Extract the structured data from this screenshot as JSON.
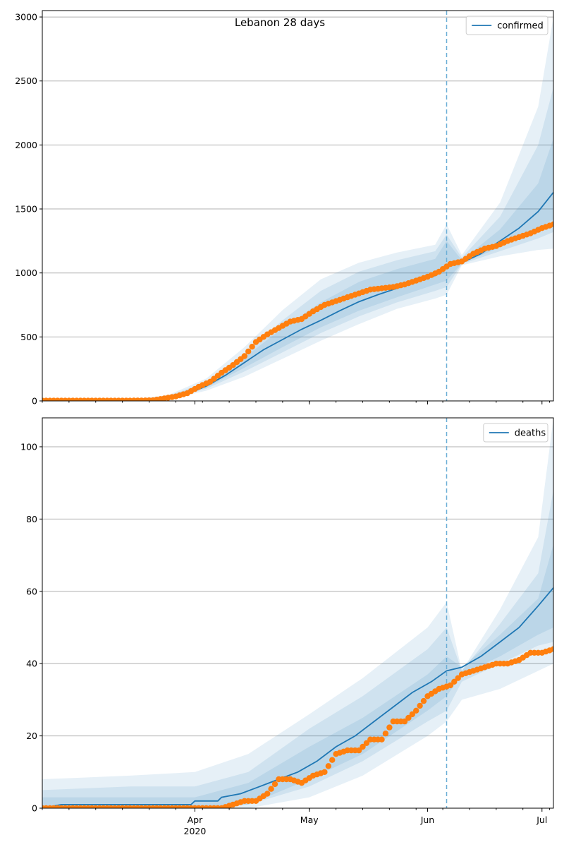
{
  "figure": {
    "title": "Lebanon 28 days"
  },
  "colors": {
    "model_line": "#1f77b4",
    "observed_points": "#ff7f0e",
    "band": "#1f77b4",
    "forecast_start_line": "#6baed6",
    "grid": "#b0b0b0"
  },
  "chart_data": [
    {
      "type": "line",
      "panel": "top",
      "title": "Lebanon 28 days",
      "legend": {
        "label": "confirmed",
        "placement": "top-right"
      },
      "x_axis": {
        "type": "date",
        "range": [
          "2020-02-21",
          "2020-07-04"
        ],
        "ticks": [
          {
            "date": "2020-04-01",
            "label": "Apr",
            "sublabel": "2020"
          },
          {
            "date": "2020-05-01",
            "label": "May",
            "sublabel": ""
          },
          {
            "date": "2020-06-01",
            "label": "Jun",
            "sublabel": ""
          },
          {
            "date": "2020-07-01",
            "label": "Jul",
            "sublabel": ""
          }
        ],
        "show_tick_labels": false
      },
      "y_axis": {
        "range": [
          0,
          3050
        ],
        "ticks": [
          0,
          500,
          1000,
          1500,
          2000,
          2500,
          3000
        ]
      },
      "grid": "horizontal",
      "forecast_start": "2020-06-06",
      "model": {
        "x": [
          "2020-02-21",
          "2020-03-05",
          "2020-03-15",
          "2020-03-20",
          "2020-03-25",
          "2020-03-30",
          "2020-04-04",
          "2020-04-09",
          "2020-04-14",
          "2020-04-19",
          "2020-04-24",
          "2020-04-29",
          "2020-05-04",
          "2020-05-09",
          "2020-05-14",
          "2020-05-19",
          "2020-05-24",
          "2020-05-29",
          "2020-06-03",
          "2020-06-06",
          "2020-06-10",
          "2020-06-15",
          "2020-06-20",
          "2020-06-25",
          "2020-06-30",
          "2020-07-04"
        ],
        "y": [
          0,
          0,
          3,
          10,
          25,
          55,
          115,
          200,
          300,
          400,
          480,
          560,
          630,
          705,
          775,
          830,
          880,
          930,
          980,
          1050,
          1080,
          1150,
          1250,
          1350,
          1480,
          1630
        ]
      },
      "bands": [
        {
          "x": [
            "2020-02-21",
            "2020-03-15",
            "2020-03-25",
            "2020-04-04",
            "2020-04-14",
            "2020-04-24",
            "2020-05-04",
            "2020-05-14",
            "2020-05-24",
            "2020-06-03",
            "2020-06-06",
            "2020-06-10",
            "2020-06-20",
            "2020-06-30",
            "2020-07-04"
          ],
          "lower": [
            0,
            0,
            10,
            80,
            190,
            330,
            470,
            600,
            720,
            800,
            830,
            1060,
            1130,
            1180,
            1190
          ],
          "upper": [
            0,
            10,
            45,
            175,
            420,
            710,
            950,
            1080,
            1160,
            1220,
            1380,
            1140,
            1550,
            2300,
            3000
          ]
        },
        {
          "x": [
            "2020-02-21",
            "2020-03-15",
            "2020-03-25",
            "2020-04-04",
            "2020-04-14",
            "2020-04-24",
            "2020-05-04",
            "2020-05-14",
            "2020-05-24",
            "2020-06-03",
            "2020-06-06",
            "2020-06-10",
            "2020-06-20",
            "2020-06-30",
            "2020-07-04"
          ],
          "lower": [
            0,
            0,
            15,
            95,
            230,
            380,
            530,
            660,
            770,
            860,
            890,
            1070,
            1170,
            1270,
            1320
          ],
          "upper": [
            0,
            7,
            38,
            150,
            370,
            630,
            860,
            1010,
            1100,
            1170,
            1300,
            1120,
            1440,
            2000,
            2450
          ]
        },
        {
          "x": [
            "2020-02-21",
            "2020-03-15",
            "2020-03-25",
            "2020-04-04",
            "2020-04-14",
            "2020-04-24",
            "2020-05-04",
            "2020-05-14",
            "2020-05-24",
            "2020-06-03",
            "2020-06-06",
            "2020-06-10",
            "2020-06-20",
            "2020-06-30",
            "2020-07-04"
          ],
          "lower": [
            0,
            1,
            18,
            105,
            260,
            420,
            575,
            705,
            810,
            910,
            940,
            1075,
            1200,
            1340,
            1420
          ],
          "upper": [
            0,
            5,
            32,
            130,
            340,
            570,
            770,
            930,
            1030,
            1110,
            1250,
            1100,
            1340,
            1700,
            2050
          ]
        }
      ],
      "observed": {
        "x": [
          "2020-02-21",
          "2020-02-26",
          "2020-03-03",
          "2020-03-08",
          "2020-03-13",
          "2020-03-18",
          "2020-03-21",
          "2020-03-24",
          "2020-03-27",
          "2020-03-30",
          "2020-04-02",
          "2020-04-05",
          "2020-04-08",
          "2020-04-11",
          "2020-04-14",
          "2020-04-17",
          "2020-04-20",
          "2020-04-23",
          "2020-04-26",
          "2020-04-29",
          "2020-05-02",
          "2020-05-05",
          "2020-05-08",
          "2020-05-11",
          "2020-05-14",
          "2020-05-17",
          "2020-05-20",
          "2020-05-23",
          "2020-05-26",
          "2020-05-29",
          "2020-06-01",
          "2020-06-04",
          "2020-06-07",
          "2020-06-10",
          "2020-06-13",
          "2020-06-16",
          "2020-06-19",
          "2020-06-22",
          "2020-06-25",
          "2020-06-28",
          "2020-07-01",
          "2020-07-04"
        ],
        "y": [
          2,
          2,
          2,
          2,
          2,
          3,
          5,
          20,
          35,
          60,
          110,
          150,
          220,
          280,
          350,
          460,
          520,
          570,
          620,
          640,
          700,
          750,
          780,
          810,
          840,
          870,
          880,
          890,
          910,
          940,
          970,
          1010,
          1070,
          1090,
          1150,
          1190,
          1210,
          1250,
          1280,
          1310,
          1350,
          1380
        ]
      }
    },
    {
      "type": "line",
      "panel": "bottom",
      "legend": {
        "label": "deaths",
        "placement": "top-right"
      },
      "x_axis": {
        "type": "date",
        "range": [
          "2020-02-21",
          "2020-07-04"
        ],
        "ticks": [
          {
            "date": "2020-04-01",
            "label": "Apr",
            "sublabel": "2020"
          },
          {
            "date": "2020-05-01",
            "label": "May",
            "sublabel": ""
          },
          {
            "date": "2020-06-01",
            "label": "Jun",
            "sublabel": ""
          },
          {
            "date": "2020-07-01",
            "label": "Jul",
            "sublabel": ""
          }
        ],
        "show_tick_labels": true
      },
      "y_axis": {
        "range": [
          0,
          108
        ],
        "ticks": [
          0,
          20,
          40,
          60,
          80,
          100
        ]
      },
      "grid": "horizontal",
      "forecast_start": "2020-06-06",
      "model": {
        "x": [
          "2020-02-21",
          "2020-02-26",
          "2020-03-31",
          "2020-04-01",
          "2020-04-07",
          "2020-04-08",
          "2020-04-13",
          "2020-04-18",
          "2020-04-23",
          "2020-04-28",
          "2020-05-03",
          "2020-05-08",
          "2020-05-13",
          "2020-05-18",
          "2020-05-23",
          "2020-05-28",
          "2020-06-02",
          "2020-06-06",
          "2020-06-10",
          "2020-06-15",
          "2020-06-20",
          "2020-06-25",
          "2020-06-30",
          "2020-07-04"
        ],
        "y": [
          0,
          1,
          1,
          2,
          2,
          3,
          4,
          6,
          8,
          10,
          13,
          17,
          20,
          24,
          28,
          32,
          35,
          38,
          39,
          42,
          46,
          50,
          56,
          61
        ]
      },
      "bands": [
        {
          "x": [
            "2020-02-21",
            "2020-03-15",
            "2020-04-01",
            "2020-04-15",
            "2020-05-01",
            "2020-05-15",
            "2020-06-01",
            "2020-06-06",
            "2020-06-10",
            "2020-06-20",
            "2020-06-30",
            "2020-07-04"
          ],
          "lower": [
            0,
            0,
            0,
            0,
            3,
            9,
            20,
            24,
            30,
            33,
            38,
            40
          ],
          "upper": [
            8,
            9,
            10,
            15,
            26,
            36,
            50,
            57,
            38,
            55,
            75,
            108
          ]
        },
        {
          "x": [
            "2020-02-21",
            "2020-03-15",
            "2020-04-01",
            "2020-04-15",
            "2020-05-01",
            "2020-05-15",
            "2020-06-01",
            "2020-06-06",
            "2020-06-10",
            "2020-06-20",
            "2020-06-30",
            "2020-07-04"
          ],
          "lower": [
            0,
            0,
            0,
            1,
            6,
            13,
            24,
            27,
            35,
            40,
            45,
            46
          ],
          "upper": [
            5,
            6,
            6,
            10,
            22,
            31,
            44,
            50,
            38,
            51,
            65,
            88
          ]
        },
        {
          "x": [
            "2020-02-21",
            "2020-03-15",
            "2020-04-01",
            "2020-04-15",
            "2020-05-01",
            "2020-05-15",
            "2020-06-01",
            "2020-06-06",
            "2020-06-10",
            "2020-06-20",
            "2020-06-30",
            "2020-07-04"
          ],
          "lower": [
            0,
            0,
            0,
            1,
            8,
            15,
            27,
            31,
            37,
            42,
            48,
            50
          ],
          "upper": [
            3,
            3,
            3,
            7,
            17,
            25,
            37,
            42,
            39,
            48,
            58,
            73
          ]
        }
      ],
      "observed": {
        "x": [
          "2020-02-21",
          "2020-03-01",
          "2020-03-10",
          "2020-03-20",
          "2020-03-31",
          "2020-04-08",
          "2020-04-11",
          "2020-04-14",
          "2020-04-17",
          "2020-04-20",
          "2020-04-23",
          "2020-04-26",
          "2020-04-29",
          "2020-05-02",
          "2020-05-05",
          "2020-05-08",
          "2020-05-11",
          "2020-05-14",
          "2020-05-17",
          "2020-05-20",
          "2020-05-23",
          "2020-05-26",
          "2020-05-29",
          "2020-06-01",
          "2020-06-04",
          "2020-06-07",
          "2020-06-10",
          "2020-06-13",
          "2020-06-16",
          "2020-06-19",
          "2020-06-22",
          "2020-06-25",
          "2020-06-28",
          "2020-07-01",
          "2020-07-04"
        ],
        "y": [
          0,
          0,
          0,
          0,
          0,
          0,
          1,
          2,
          2,
          4,
          8,
          8,
          7,
          9,
          10,
          15,
          16,
          16,
          19,
          19,
          24,
          24,
          27,
          31,
          33,
          34,
          37,
          38,
          39,
          40,
          40,
          41,
          43,
          43,
          44
        ]
      }
    }
  ]
}
